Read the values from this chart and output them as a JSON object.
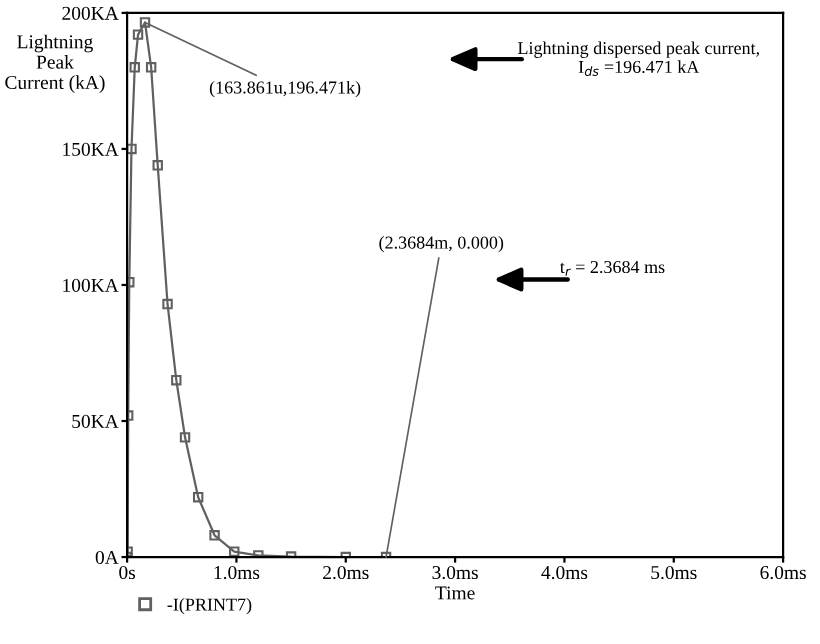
{
  "chart_data": {
    "type": "line",
    "xlabel": "Time",
    "ylabel": "Lightning\nPeak\nCurrent (kA)",
    "x": [
      0,
      0.005,
      0.01,
      0.02,
      0.04,
      0.07,
      0.1,
      0.163861,
      0.22,
      0.28,
      0.37,
      0.45,
      0.53,
      0.65,
      0.8,
      0.98,
      1.2,
      1.5,
      2.0,
      2.3684
    ],
    "series": [
      {
        "name": "-I(PRINT7)",
        "color": "#606060",
        "values": [
          0,
          2,
          52,
          101,
          150,
          180,
          192,
          196.471,
          180,
          144,
          93,
          65,
          44,
          22,
          8,
          2,
          0.6,
          0.2,
          0,
          0
        ]
      }
    ],
    "xlim": [
      0,
      6
    ],
    "xticks": [
      {
        "value": 0,
        "label": "0s"
      },
      {
        "value": 1,
        "label": "1.0ms"
      },
      {
        "value": 2,
        "label": "2.0ms"
      },
      {
        "value": 3,
        "label": "3.0ms"
      },
      {
        "value": 4,
        "label": "4.0ms"
      },
      {
        "value": 5,
        "label": "5.0ms"
      },
      {
        "value": 6,
        "label": "6.0ms"
      }
    ],
    "ylim": [
      0,
      200
    ],
    "yticks": [
      {
        "value": 0,
        "label": "0A"
      },
      {
        "value": 50,
        "label": "50KA"
      },
      {
        "value": 100,
        "label": "100KA"
      },
      {
        "value": 150,
        "label": "150KA"
      },
      {
        "value": 200,
        "label": "200KA"
      }
    ],
    "annotations": [
      {
        "text": "(163.861u,196.471k)",
        "x": 0.163861,
        "y": 196.471
      },
      {
        "text": "(2.3684m, 0.000)",
        "x": 2.3684,
        "y": 0
      },
      "Lightning dispersed peak current,\nI$_{ds}$ =196.471 kA",
      "t$_{r}$ = 2.3684 ms"
    ],
    "grid": false,
    "legend": "bottom left",
    "marker": "square",
    "line_style": "solid"
  }
}
